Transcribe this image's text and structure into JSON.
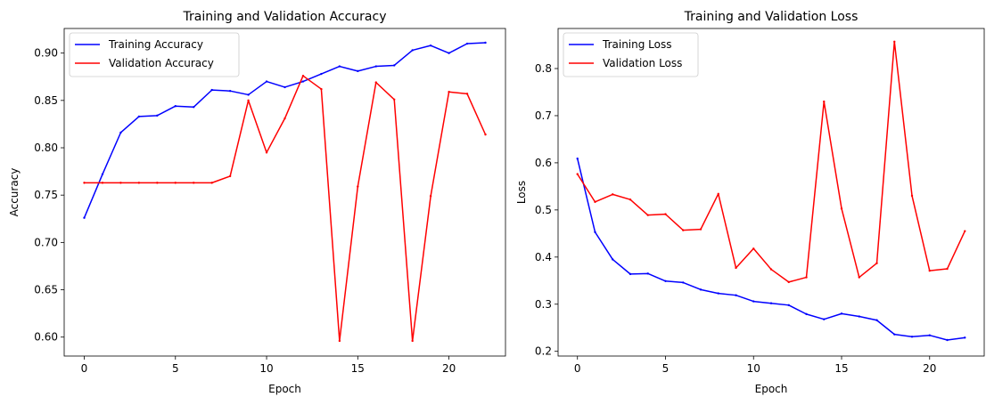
{
  "chart_data": [
    {
      "type": "line",
      "title": "Training and Validation Accuracy",
      "xlabel": "Epoch",
      "ylabel": "Accuracy",
      "xlim": [
        -1.1,
        23.1
      ],
      "ylim": [
        0.58,
        0.926
      ],
      "xticks": [
        0,
        5,
        10,
        15,
        20
      ],
      "yticks": [
        0.6,
        0.65,
        0.7,
        0.75,
        0.8,
        0.85,
        0.9
      ],
      "ytick_labels": [
        "0.60",
        "0.65",
        "0.70",
        "0.75",
        "0.80",
        "0.85",
        "0.90"
      ],
      "grid": false,
      "legend": "upper-left",
      "x": [
        0,
        1,
        2,
        3,
        4,
        5,
        6,
        7,
        8,
        9,
        10,
        11,
        12,
        13,
        14,
        15,
        16,
        17,
        18,
        19,
        20,
        21,
        22
      ],
      "series": [
        {
          "name": "Training Accuracy",
          "color": "#0000ff",
          "values": [
            0.726,
            0.772,
            0.816,
            0.833,
            0.834,
            0.844,
            0.843,
            0.861,
            0.86,
            0.856,
            0.87,
            0.864,
            0.87,
            0.878,
            0.886,
            0.881,
            0.886,
            0.887,
            0.903,
            0.908,
            0.9,
            0.91,
            0.911
          ]
        },
        {
          "name": "Validation Accuracy",
          "color": "#ff0000",
          "values": [
            0.763,
            0.763,
            0.763,
            0.763,
            0.763,
            0.763,
            0.763,
            0.763,
            0.77,
            0.85,
            0.795,
            0.831,
            0.876,
            0.862,
            0.596,
            0.759,
            0.869,
            0.851,
            0.596,
            0.749,
            0.859,
            0.857,
            0.814
          ]
        }
      ]
    },
    {
      "type": "line",
      "title": "Training and Validation Loss",
      "xlabel": "Epoch",
      "ylabel": "Loss",
      "xlim": [
        -1.1,
        23.1
      ],
      "ylim": [
        0.19,
        0.885
      ],
      "xticks": [
        0,
        5,
        10,
        15,
        20
      ],
      "yticks": [
        0.2,
        0.3,
        0.4,
        0.5,
        0.6,
        0.7,
        0.8
      ],
      "ytick_labels": [
        "0.2",
        "0.3",
        "0.4",
        "0.5",
        "0.6",
        "0.7",
        "0.8"
      ],
      "grid": false,
      "legend": "upper-left",
      "x": [
        0,
        1,
        2,
        3,
        4,
        5,
        6,
        7,
        8,
        9,
        10,
        11,
        12,
        13,
        14,
        15,
        16,
        17,
        18,
        19,
        20,
        21,
        22
      ],
      "series": [
        {
          "name": "Training Loss",
          "color": "#0000ff",
          "values": [
            0.609,
            0.453,
            0.395,
            0.364,
            0.365,
            0.349,
            0.346,
            0.331,
            0.323,
            0.319,
            0.306,
            0.302,
            0.298,
            0.279,
            0.268,
            0.28,
            0.274,
            0.266,
            0.236,
            0.231,
            0.234,
            0.224,
            0.229
          ]
        },
        {
          "name": "Validation Loss",
          "color": "#ff0000",
          "values": [
            0.576,
            0.517,
            0.533,
            0.522,
            0.489,
            0.491,
            0.457,
            0.459,
            0.534,
            0.377,
            0.418,
            0.374,
            0.347,
            0.357,
            0.73,
            0.503,
            0.357,
            0.387,
            0.857,
            0.53,
            0.371,
            0.375,
            0.455
          ]
        }
      ]
    }
  ]
}
